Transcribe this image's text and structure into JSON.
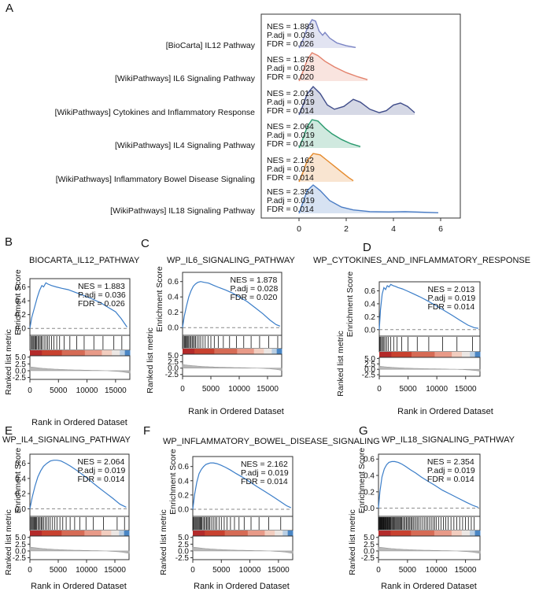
{
  "colors": {
    "gsea_line": "#3a7dc8",
    "ridges": [
      "#7a84c4",
      "#e3826c",
      "#404d8a",
      "#2a9a6e",
      "#e58a2c",
      "#4a7cc4"
    ],
    "heat": [
      "#b32a2a",
      "#c8412f",
      "#d66b55",
      "#e89a88",
      "#f2cdbf",
      "#ece7e4",
      "#b9cfe4",
      "#4a86c4"
    ]
  },
  "panel_a": {
    "label": "A",
    "chart_data": {
      "type": "ridgeline",
      "xlim": [
        -1.5,
        7.2
      ],
      "xticks": [
        "0",
        "2",
        "4",
        "6"
      ],
      "tick_values": [
        0,
        2,
        4,
        6
      ],
      "rows": [
        {
          "name": "[BioCarta] IL12 Pathway",
          "stats": [
            "NES = 1.883",
            "P.adj = 0.036",
            "FDR = 0.026"
          ],
          "density": [
            [
              0,
              0
            ],
            [
              0.15,
              0.25
            ],
            [
              0.35,
              0.7
            ],
            [
              0.55,
              1.0
            ],
            [
              0.7,
              0.95
            ],
            [
              0.85,
              0.6
            ],
            [
              1.0,
              0.45
            ],
            [
              1.1,
              0.55
            ],
            [
              1.3,
              0.35
            ],
            [
              1.6,
              0.18
            ],
            [
              2.0,
              0.08
            ],
            [
              2.4,
              0.02
            ]
          ]
        },
        {
          "name": "[WikiPathways] IL6 Signaling Pathway",
          "stats": [
            "NES = 1.878",
            "P.adj = 0.028",
            "FDR = 0.020"
          ],
          "density": [
            [
              0,
              0
            ],
            [
              0.15,
              0.3
            ],
            [
              0.35,
              0.75
            ],
            [
              0.55,
              1.0
            ],
            [
              0.8,
              0.9
            ],
            [
              1.1,
              0.7
            ],
            [
              1.5,
              0.5
            ],
            [
              2.0,
              0.3
            ],
            [
              2.5,
              0.15
            ],
            [
              2.9,
              0.05
            ]
          ]
        },
        {
          "name": "[WikiPathways] Cytokines and Inflammatory Response",
          "stats": [
            "NES = 2.013",
            "P.adj = 0.019",
            "FDR = 0.014"
          ],
          "density": [
            [
              0,
              0
            ],
            [
              0.15,
              0.3
            ],
            [
              0.35,
              0.75
            ],
            [
              0.6,
              1.0
            ],
            [
              0.9,
              0.75
            ],
            [
              1.2,
              0.35
            ],
            [
              1.5,
              0.2
            ],
            [
              1.9,
              0.3
            ],
            [
              2.3,
              0.55
            ],
            [
              2.6,
              0.45
            ],
            [
              3.0,
              0.2
            ],
            [
              3.4,
              0.08
            ],
            [
              3.7,
              0.15
            ],
            [
              4.0,
              0.35
            ],
            [
              4.3,
              0.42
            ],
            [
              4.6,
              0.3
            ],
            [
              4.9,
              0.08
            ]
          ]
        },
        {
          "name": "[WikiPathways] IL4 Signaling Pathway",
          "stats": [
            "NES = 2.064",
            "P.adj = 0.019",
            "FDR = 0.014"
          ],
          "density": [
            [
              0,
              0
            ],
            [
              0.15,
              0.3
            ],
            [
              0.35,
              0.75
            ],
            [
              0.55,
              1.0
            ],
            [
              0.8,
              0.95
            ],
            [
              1.1,
              0.7
            ],
            [
              1.4,
              0.5
            ],
            [
              1.8,
              0.3
            ],
            [
              2.2,
              0.15
            ],
            [
              2.6,
              0.05
            ]
          ]
        },
        {
          "name": "[WikiPathways] Inflammatory Bowel Disease Signaling",
          "stats": [
            "NES = 2.162",
            "P.adj = 0.019",
            "FDR = 0.014"
          ],
          "density": [
            [
              0,
              0
            ],
            [
              0.15,
              0.3
            ],
            [
              0.35,
              0.75
            ],
            [
              0.6,
              1.0
            ],
            [
              0.9,
              0.95
            ],
            [
              1.2,
              0.75
            ],
            [
              1.5,
              0.55
            ],
            [
              1.8,
              0.35
            ],
            [
              2.1,
              0.15
            ],
            [
              2.3,
              0.04
            ]
          ]
        },
        {
          "name": "[WikiPathways] IL18 Signaling Pathway",
          "stats": [
            "NES = 2.354",
            "P.adj = 0.019",
            "FDR = 0.014"
          ],
          "density": [
            [
              0,
              0
            ],
            [
              0.15,
              0.35
            ],
            [
              0.35,
              0.8
            ],
            [
              0.6,
              1.0
            ],
            [
              0.9,
              0.8
            ],
            [
              1.3,
              0.45
            ],
            [
              1.8,
              0.22
            ],
            [
              2.3,
              0.12
            ],
            [
              3.0,
              0.06
            ],
            [
              3.8,
              0.05
            ],
            [
              4.5,
              0.06
            ],
            [
              5.2,
              0.04
            ],
            [
              5.9,
              0.02
            ]
          ]
        }
      ]
    }
  },
  "gsea_common": {
    "es_ylabel": "Enrichment Score",
    "rank_ylabel": "Ranked list metric",
    "xlabel": "Rank in Ordered Dataset",
    "xticks": [
      "0",
      "5000",
      "10000",
      "15000"
    ],
    "x_tick_values": [
      0,
      5000,
      10000,
      15000
    ],
    "xmax": 17500,
    "rank_ticks": [
      "5.0",
      "2.5",
      "0.0",
      "-2.5"
    ],
    "rank_tick_values": [
      5,
      2.5,
      0,
      -2.5
    ],
    "rank_range": [
      -3.2,
      5.5
    ]
  },
  "gsea_panels": [
    {
      "label": "B",
      "title": "BIOCARTA_IL12_PATHWAY",
      "stats": [
        "NES = 1.883",
        "P.adj = 0.036",
        "FDR = 0.026"
      ],
      "chart_data": {
        "type": "line",
        "ylim": [
          -0.1,
          0.72
        ],
        "yticks": [
          "0.6",
          "0.4",
          "0.2",
          "0.0"
        ],
        "ytick_values": [
          0.6,
          0.4,
          0.2,
          0.0
        ],
        "x": [
          0,
          300,
          800,
          1300,
          1700,
          2100,
          2400,
          2800,
          3200,
          3800,
          4600,
          5600,
          6700,
          8000,
          9300,
          10800,
          12400,
          13800,
          15000,
          16000,
          17000
        ],
        "y": [
          0,
          0.15,
          0.3,
          0.45,
          0.55,
          0.62,
          0.6,
          0.66,
          0.64,
          0.62,
          0.6,
          0.58,
          0.56,
          0.52,
          0.48,
          0.43,
          0.37,
          0.3,
          0.24,
          0.14,
          0.02
        ],
        "hits": [
          200,
          400,
          550,
          700,
          900,
          1050,
          1200,
          1400,
          1600,
          1800,
          2000,
          2200,
          2500,
          2800,
          3100,
          3400,
          3800,
          4200,
          4700,
          5200,
          6000,
          7000,
          8200,
          9500,
          11200,
          12800,
          14700,
          16100
        ]
      }
    },
    {
      "label": "C",
      "title": "WP_IL6_SIGNALING_PATHWAY",
      "stats": [
        "NES = 1.878",
        "P.adj = 0.028",
        "FDR = 0.020"
      ],
      "chart_data": {
        "type": "line",
        "ylim": [
          -0.1,
          0.72
        ],
        "yticks": [
          "0.6",
          "0.4",
          "0.2",
          "0.0"
        ],
        "ytick_values": [
          0.6,
          0.4,
          0.2,
          0.0
        ],
        "x": [
          0,
          300,
          700,
          1100,
          1500,
          1900,
          2300,
          2700,
          3200,
          3800,
          4600,
          5500,
          6500,
          7600,
          8800,
          10000,
          11400,
          12800,
          14200,
          15400,
          16500,
          17200
        ],
        "y": [
          0,
          0.15,
          0.28,
          0.4,
          0.48,
          0.54,
          0.57,
          0.59,
          0.6,
          0.59,
          0.58,
          0.55,
          0.52,
          0.49,
          0.45,
          0.4,
          0.34,
          0.26,
          0.18,
          0.1,
          0.04,
          0.02
        ],
        "hits": [
          150,
          350,
          500,
          650,
          800,
          950,
          1100,
          1300,
          1500,
          1700,
          1900,
          2100,
          2300,
          2600,
          2900,
          3200,
          3600,
          4000,
          4500,
          5000,
          5600,
          6300,
          7200,
          8300,
          9500,
          10800,
          12100,
          13600,
          15200,
          16800
        ]
      }
    },
    {
      "label": "D",
      "title": "WP_CYTOKINES_AND_INFLAMMATORY_RESPONSE",
      "stats": [
        "NES = 2.013",
        "P.adj = 0.019",
        "FDR = 0.014"
      ],
      "chart_data": {
        "type": "line",
        "ylim": [
          -0.1,
          0.74
        ],
        "yticks": [
          "0.6",
          "0.4",
          "0.2",
          "0.0"
        ],
        "ytick_values": [
          0.6,
          0.4,
          0.2,
          0.0
        ],
        "x": [
          0,
          200,
          500,
          800,
          1100,
          1400,
          1700,
          2000,
          2400,
          2800,
          3300,
          4000,
          4800,
          5800,
          7000,
          8300,
          9700,
          11200,
          12700,
          14100,
          15400,
          16500,
          17200
        ],
        "y": [
          0,
          0.3,
          0.55,
          0.65,
          0.62,
          0.68,
          0.66,
          0.7,
          0.68,
          0.67,
          0.65,
          0.63,
          0.6,
          0.56,
          0.51,
          0.45,
          0.38,
          0.3,
          0.22,
          0.14,
          0.07,
          0.03,
          0.02
        ],
        "hits": [
          100,
          250,
          400,
          600,
          800,
          1000,
          1300,
          1600,
          2000,
          2500,
          3100,
          3900,
          5000,
          6600,
          8600,
          11000,
          13500,
          16200
        ]
      }
    },
    {
      "label": "E",
      "title": "WP_IL4_SIGNALING_PATHWAY",
      "stats": [
        "NES = 2.064",
        "P.adj = 0.019",
        "FDR = 0.014"
      ],
      "chart_data": {
        "type": "line",
        "ylim": [
          -0.1,
          0.72
        ],
        "yticks": [
          "0.6",
          "0.4",
          "0.2",
          "0.0"
        ],
        "ytick_values": [
          0.6,
          0.4,
          0.2,
          0.0
        ],
        "x": [
          0,
          400,
          900,
          1400,
          1900,
          2400,
          3000,
          3600,
          4200,
          4800,
          5500,
          6300,
          7200,
          8200,
          9300,
          10500,
          11800,
          13200,
          14600,
          15900,
          17000
        ],
        "y": [
          0,
          0.15,
          0.3,
          0.42,
          0.5,
          0.56,
          0.6,
          0.63,
          0.64,
          0.64,
          0.63,
          0.6,
          0.56,
          0.51,
          0.45,
          0.38,
          0.3,
          0.22,
          0.14,
          0.06,
          0.02
        ],
        "hits": [
          150,
          300,
          450,
          600,
          750,
          900,
          1050,
          1200,
          1400,
          1600,
          1800,
          2000,
          2200,
          2400,
          2700,
          3000,
          3300,
          3600,
          4000,
          4400,
          4800,
          5300,
          5800,
          6400,
          7100,
          7900,
          8800,
          9900,
          11200,
          13000,
          15400,
          16700
        ]
      }
    },
    {
      "label": "F",
      "title": "WP_INFLAMMATORY_BOWEL_DISEASE_SIGNALING",
      "stats": [
        "NES = 2.162",
        "P.adj = 0.019",
        "FDR = 0.014"
      ],
      "chart_data": {
        "type": "line",
        "ylim": [
          -0.1,
          0.74
        ],
        "yticks": [
          "0.6",
          "0.4",
          "0.2",
          "0.0"
        ],
        "ytick_values": [
          0.6,
          0.4,
          0.2,
          0.0
        ],
        "x": [
          0,
          300,
          700,
          1100,
          1500,
          1900,
          2300,
          2700,
          3100,
          3600,
          4200,
          4900,
          5700,
          6600,
          7600,
          8700,
          9900,
          11200,
          12600,
          14000,
          15300,
          16400,
          17200
        ],
        "y": [
          0,
          0.2,
          0.38,
          0.5,
          0.56,
          0.6,
          0.63,
          0.64,
          0.65,
          0.65,
          0.64,
          0.62,
          0.59,
          0.55,
          0.5,
          0.45,
          0.39,
          0.32,
          0.25,
          0.18,
          0.11,
          0.05,
          0.02
        ],
        "hits": [
          100,
          250,
          400,
          550,
          700,
          850,
          1000,
          1150,
          1300,
          1450,
          1600,
          1800,
          2000,
          2200,
          2400,
          2600,
          2800,
          3000,
          3300,
          3600,
          3900,
          4200,
          4600,
          5000,
          5500,
          6000,
          6600,
          7300,
          8100,
          9000,
          10200,
          11600,
          13300,
          15400
        ]
      }
    },
    {
      "label": "G",
      "title": "WP_IL18_SIGNALING_PATHWAY",
      "stats": [
        "NES = 2.354",
        "P.adj = 0.019",
        "FDR = 0.014"
      ],
      "chart_data": {
        "type": "line",
        "ylim": [
          -0.1,
          0.66
        ],
        "yticks": [
          "0.6",
          "0.4",
          "0.2",
          "0.0"
        ],
        "ytick_values": [
          0.6,
          0.4,
          0.2,
          0.0
        ],
        "x": [
          0,
          250,
          600,
          1000,
          1400,
          1800,
          2300,
          2800,
          3400,
          4000,
          4700,
          5500,
          6400,
          7400,
          8500,
          9700,
          11000,
          12400,
          13800,
          15200,
          16400,
          17200
        ],
        "y": [
          0,
          0.2,
          0.38,
          0.48,
          0.53,
          0.56,
          0.57,
          0.57,
          0.56,
          0.54,
          0.51,
          0.47,
          0.43,
          0.38,
          0.33,
          0.28,
          0.22,
          0.17,
          0.12,
          0.07,
          0.03,
          0.01
        ],
        "hits": [
          50,
          120,
          200,
          280,
          360,
          440,
          520,
          600,
          680,
          760,
          840,
          920,
          1000,
          1100,
          1200,
          1300,
          1400,
          1500,
          1600,
          1700,
          1800,
          1900,
          2000,
          2100,
          2200,
          2350,
          2500,
          2650,
          2800,
          2950,
          3100,
          3250,
          3400,
          3550,
          3700,
          3850,
          4000,
          4200,
          4400,
          4600,
          4800,
          5000,
          5200,
          5400,
          5600,
          5800,
          6000,
          6250,
          6500,
          6750,
          7000,
          7300,
          7600,
          7900,
          8200,
          8500,
          8800,
          9100,
          9400,
          9700,
          10000,
          10400,
          10800,
          11200,
          11600,
          12000,
          12500,
          13000,
          13500,
          14000,
          14500,
          15000,
          15500,
          16000,
          16500
        ]
      }
    }
  ]
}
